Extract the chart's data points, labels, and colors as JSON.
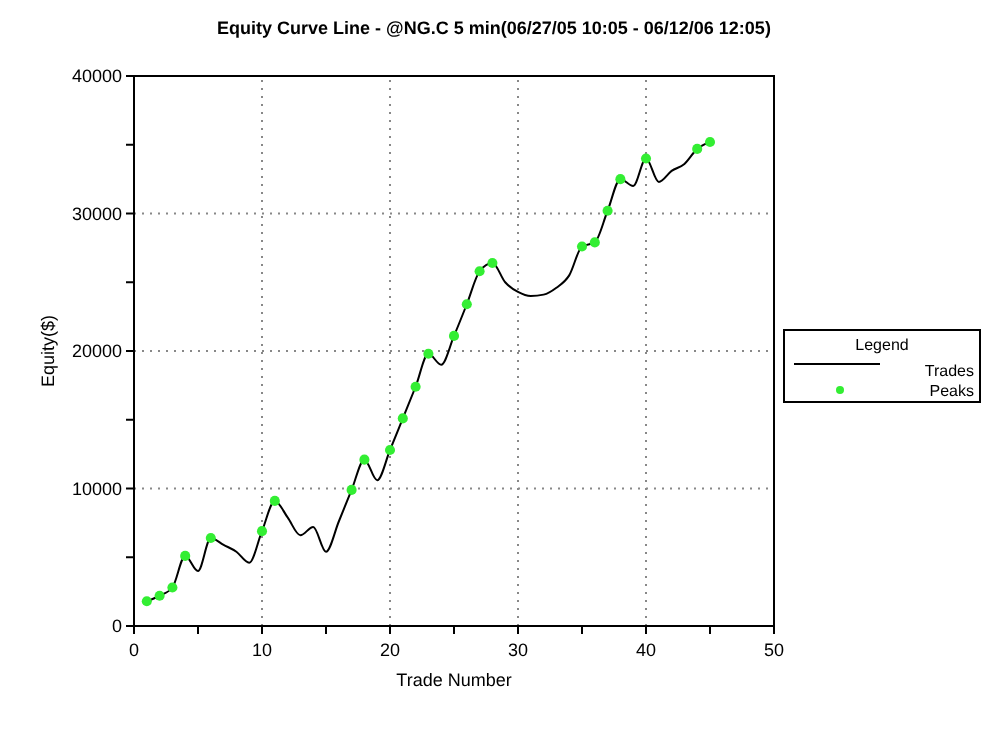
{
  "chart_data": {
    "type": "line",
    "title": "Equity Curve Line - @NG.C 5 min(06/27/05 10:05 - 06/12/06 12:05)",
    "xlabel": "Trade Number",
    "ylabel": "Equity($)",
    "legend_title": "Legend",
    "legend": "right",
    "grid": true,
    "xlim": [
      0,
      50
    ],
    "xticks": [
      0,
      {
        "value": 5,
        "label": null
      },
      10,
      {
        "value": 15,
        "label": null
      },
      20,
      {
        "value": 25,
        "label": null
      },
      30,
      {
        "value": 35,
        "label": null
      },
      40,
      {
        "value": 45,
        "label": null
      },
      50
    ],
    "ylim": [
      0,
      40000
    ],
    "yticks": [
      0,
      {
        "value": 5000,
        "label": null
      },
      10000,
      {
        "value": 15000,
        "label": null
      },
      20000,
      {
        "value": 25000,
        "label": null
      },
      30000,
      {
        "value": 35000,
        "label": null
      },
      40000
    ],
    "series": [
      {
        "name": "Trades",
        "color": "#000000",
        "marker": "none",
        "x": [
          1,
          2,
          3,
          4,
          5,
          6,
          7,
          8,
          9,
          10,
          11,
          12,
          13,
          14,
          15,
          16,
          17,
          18,
          19,
          20,
          21,
          22,
          23,
          24,
          25,
          26,
          27,
          28,
          29,
          30,
          31,
          32,
          33,
          34,
          35,
          36,
          37,
          38,
          39,
          40,
          41,
          42,
          43,
          44,
          45
        ],
        "values": [
          1800,
          2200,
          2800,
          5100,
          4000,
          6400,
          5900,
          5400,
          4600,
          6900,
          9100,
          7900,
          6600,
          7200,
          5400,
          7600,
          9900,
          12100,
          10600,
          12800,
          15100,
          17400,
          19800,
          19000,
          21100,
          23400,
          25800,
          26400,
          25000,
          24300,
          24000,
          24100,
          24600,
          25500,
          27600,
          27900,
          30200,
          32500,
          32000,
          34000,
          32300,
          33100,
          33600,
          34700,
          35200
        ]
      },
      {
        "name": "Peaks",
        "type": "scatter",
        "color": "#33ee33",
        "marker": "circle",
        "x": [
          1,
          2,
          3,
          4,
          6,
          10,
          11,
          17,
          18,
          20,
          21,
          22,
          23,
          25,
          26,
          27,
          28,
          35,
          36,
          37,
          38,
          40,
          44,
          45
        ],
        "values": [
          1800,
          2200,
          2800,
          5100,
          6400,
          6900,
          9100,
          9900,
          12100,
          12800,
          15100,
          17400,
          19800,
          21100,
          23400,
          25800,
          26400,
          27600,
          27900,
          30200,
          32500,
          34000,
          34700,
          35200
        ]
      }
    ]
  }
}
